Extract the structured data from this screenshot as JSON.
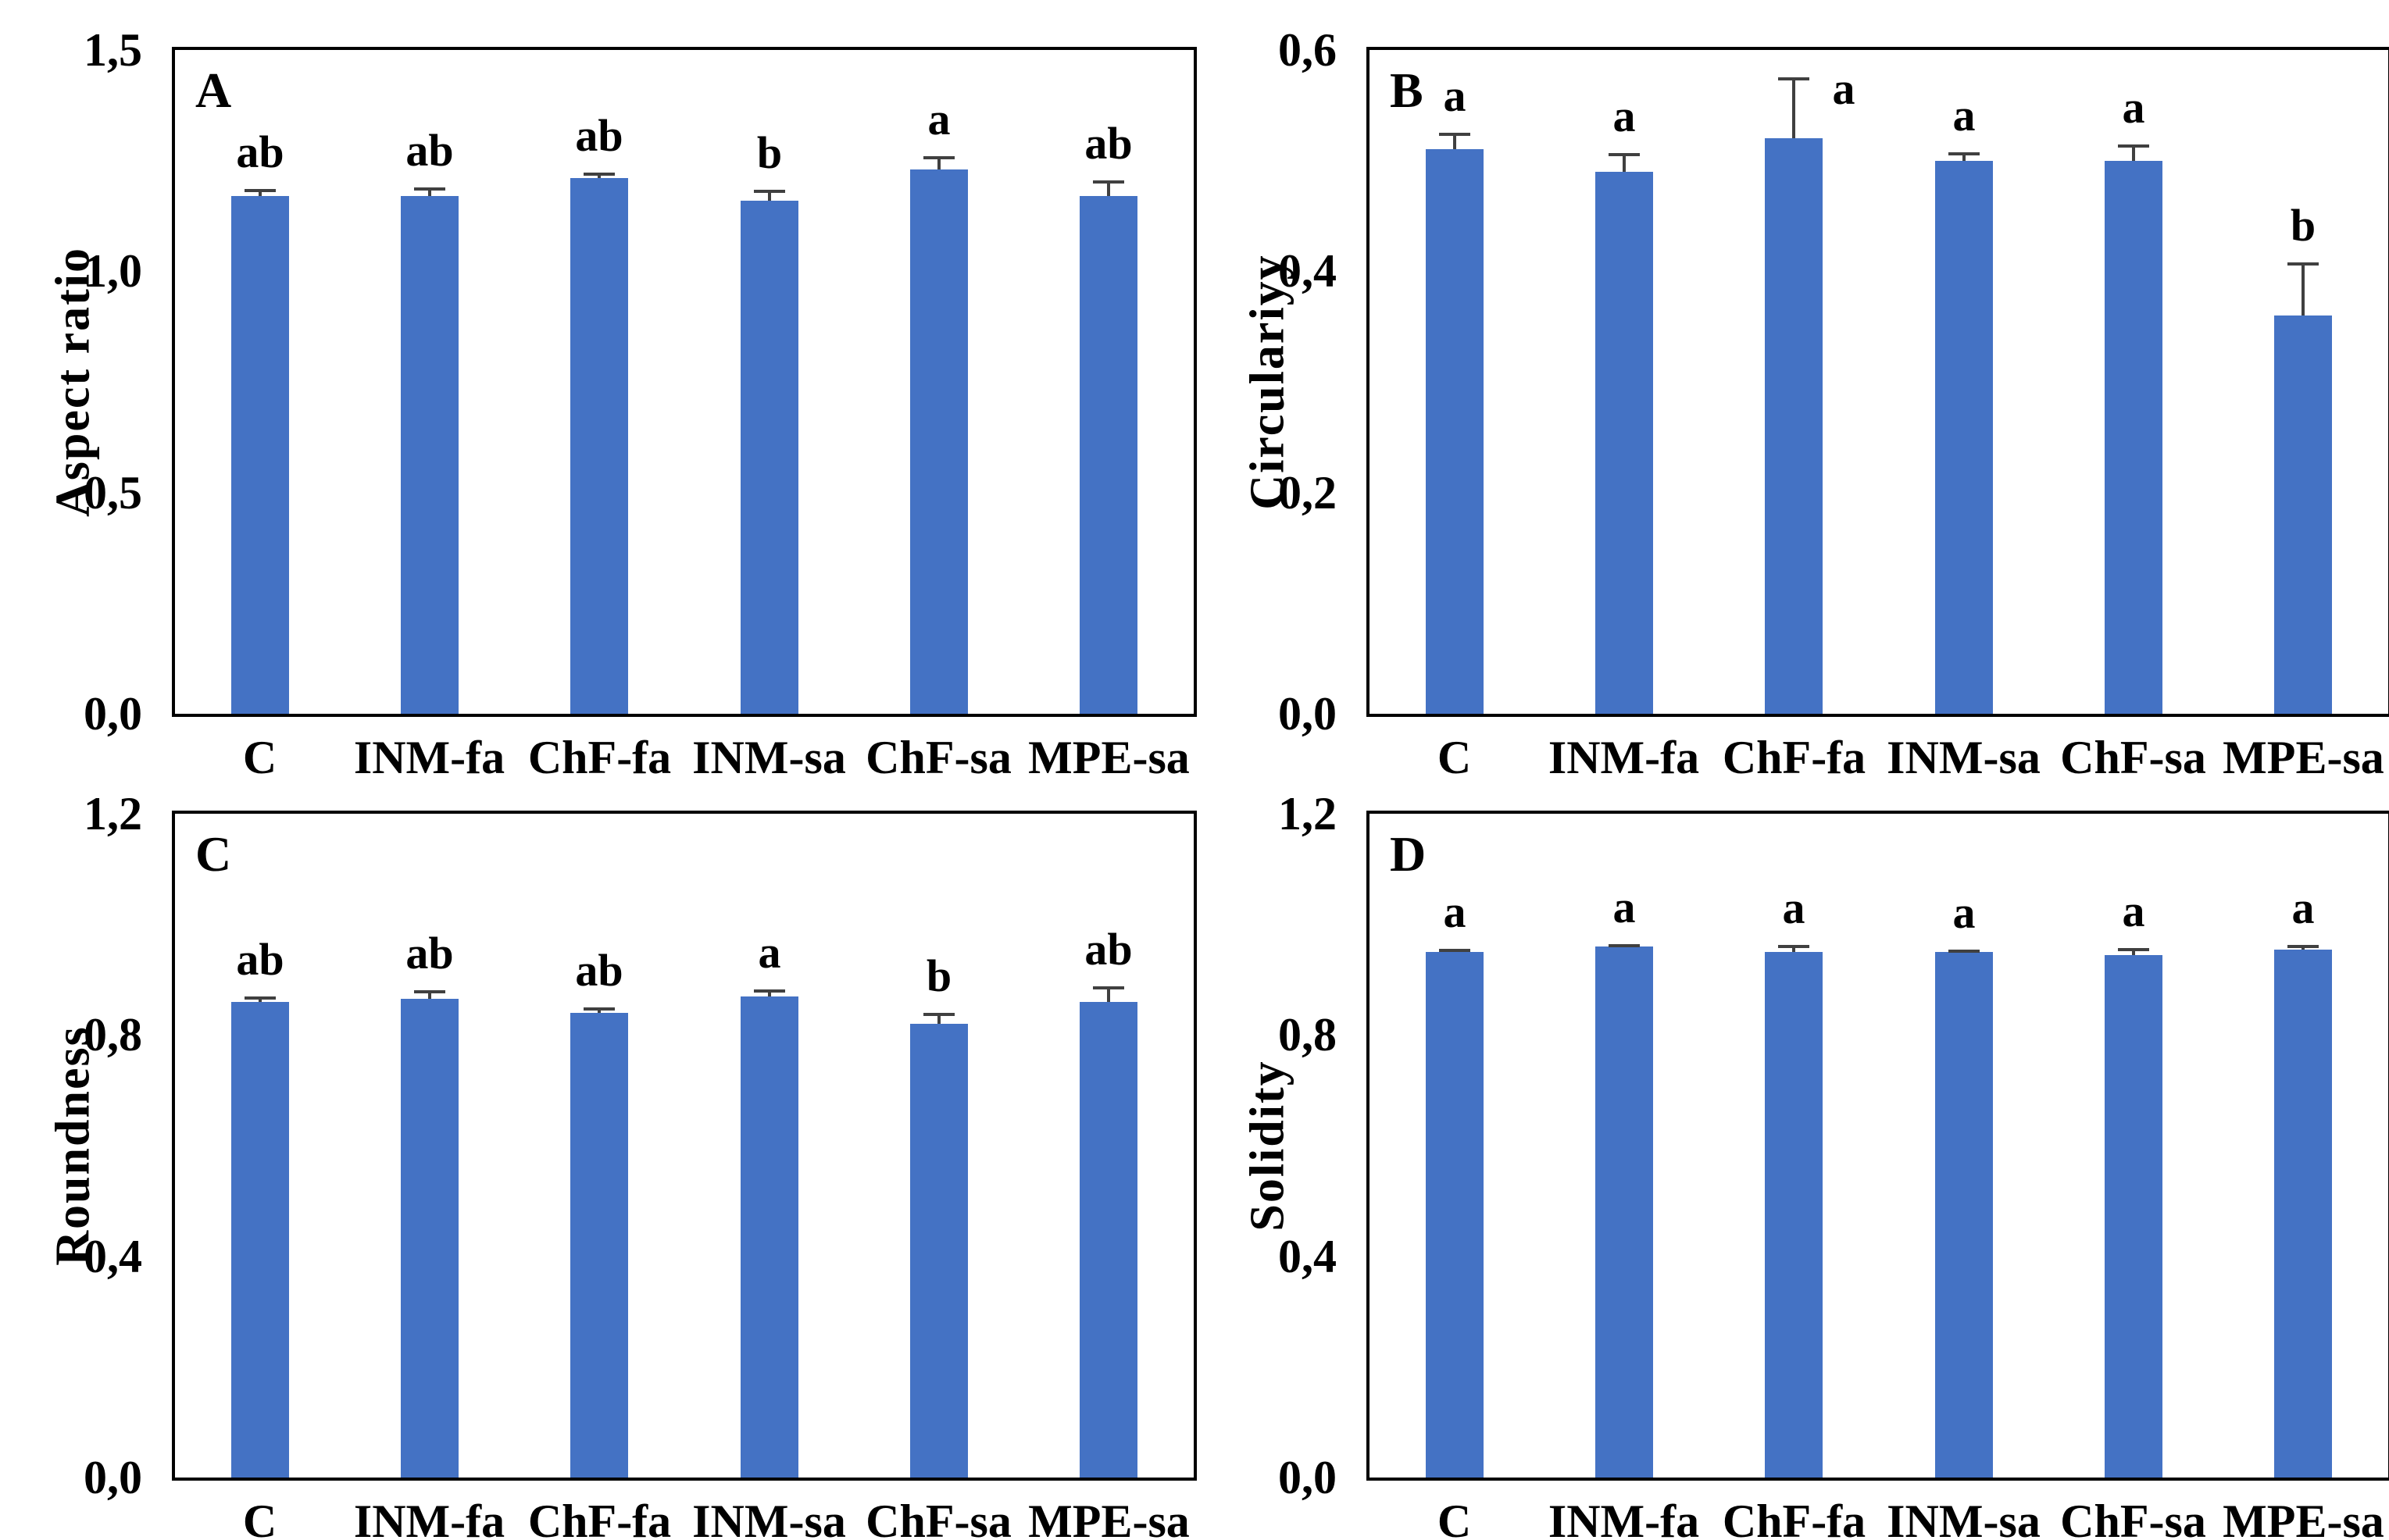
{
  "figure": {
    "kind": "four-panel bar chart figure",
    "background": "#ffffff"
  },
  "colors": {
    "bar": "#4472C4",
    "error_bar": "#404040",
    "axis": "#000000",
    "text": "#000000"
  },
  "categories": [
    "C",
    "INM-fa",
    "ChF-fa",
    "INM-sa",
    "ChF-sa",
    "MPE-sa"
  ],
  "chart_data": [
    {
      "type": "bar",
      "panel": "A",
      "title": "",
      "xlabel": "",
      "ylabel": "Aspect ratio",
      "categories": [
        "C",
        "INM-fa",
        "ChF-fa",
        "INM-sa",
        "ChF-sa",
        "MPE-sa"
      ],
      "values": [
        1.17,
        1.17,
        1.21,
        1.16,
        1.23,
        1.17
      ],
      "errors": [
        0.015,
        0.02,
        0.012,
        0.025,
        0.03,
        0.035
      ],
      "sig_letters": [
        "ab",
        "ab",
        "ab",
        "b",
        "a",
        "ab"
      ],
      "ylim": [
        0.0,
        1.5
      ],
      "yticks": [
        0.0,
        0.5,
        1.0,
        1.5
      ],
      "ytick_labels": [
        "0,0",
        "0,5",
        "1,0",
        "1,5"
      ],
      "grid": false,
      "legend": null
    },
    {
      "type": "bar",
      "panel": "B",
      "title": "",
      "xlabel": "",
      "ylabel": "Circulariyy",
      "categories": [
        "C",
        "INM-fa",
        "ChF-fa",
        "INM-sa",
        "ChF-sa",
        "MPE-sa"
      ],
      "values": [
        0.51,
        0.49,
        0.52,
        0.5,
        0.5,
        0.36
      ],
      "errors": [
        0.015,
        0.017,
        0.055,
        0.008,
        0.015,
        0.048
      ],
      "sig_letters": [
        "a",
        "a",
        "a",
        "a",
        "a",
        "b"
      ],
      "ylim": [
        0.0,
        0.6
      ],
      "yticks": [
        0.0,
        0.2,
        0.4,
        0.6
      ],
      "ytick_labels": [
        "0,0",
        "0,2",
        "0,4",
        "0,6"
      ],
      "grid": false,
      "legend": null
    },
    {
      "type": "bar",
      "panel": "C",
      "title": "",
      "xlabel": "",
      "ylabel": "Roundness",
      "categories": [
        "C",
        "INM-fa",
        "ChF-fa",
        "INM-sa",
        "ChF-sa",
        "MPE-sa"
      ],
      "values": [
        0.86,
        0.865,
        0.84,
        0.87,
        0.82,
        0.86
      ],
      "errors": [
        0.01,
        0.015,
        0.01,
        0.012,
        0.02,
        0.028
      ],
      "sig_letters": [
        "ab",
        "ab",
        "ab",
        "a",
        "b",
        "ab"
      ],
      "ylim": [
        0.0,
        1.2
      ],
      "yticks": [
        0.0,
        0.4,
        0.8,
        1.2
      ],
      "ytick_labels": [
        "0,0",
        "0,4",
        "0,8",
        "1,2"
      ],
      "grid": false,
      "legend": null
    },
    {
      "type": "bar",
      "panel": "D",
      "title": "",
      "xlabel": "",
      "ylabel": "Solidity",
      "categories": [
        "C",
        "INM-fa",
        "ChF-fa",
        "INM-sa",
        "ChF-sa",
        "MPE-sa"
      ],
      "values": [
        0.95,
        0.96,
        0.95,
        0.95,
        0.945,
        0.955
      ],
      "errors": [
        0.006,
        0.004,
        0.012,
        0.004,
        0.012,
        0.008
      ],
      "sig_letters": [
        "a",
        "a",
        "a",
        "a",
        "a",
        "a"
      ],
      "ylim": [
        0.0,
        1.2
      ],
      "yticks": [
        0.0,
        0.4,
        0.8,
        1.2
      ],
      "ytick_labels": [
        "0,0",
        "0,4",
        "0,8",
        "1,2"
      ],
      "grid": false,
      "legend": null
    }
  ]
}
